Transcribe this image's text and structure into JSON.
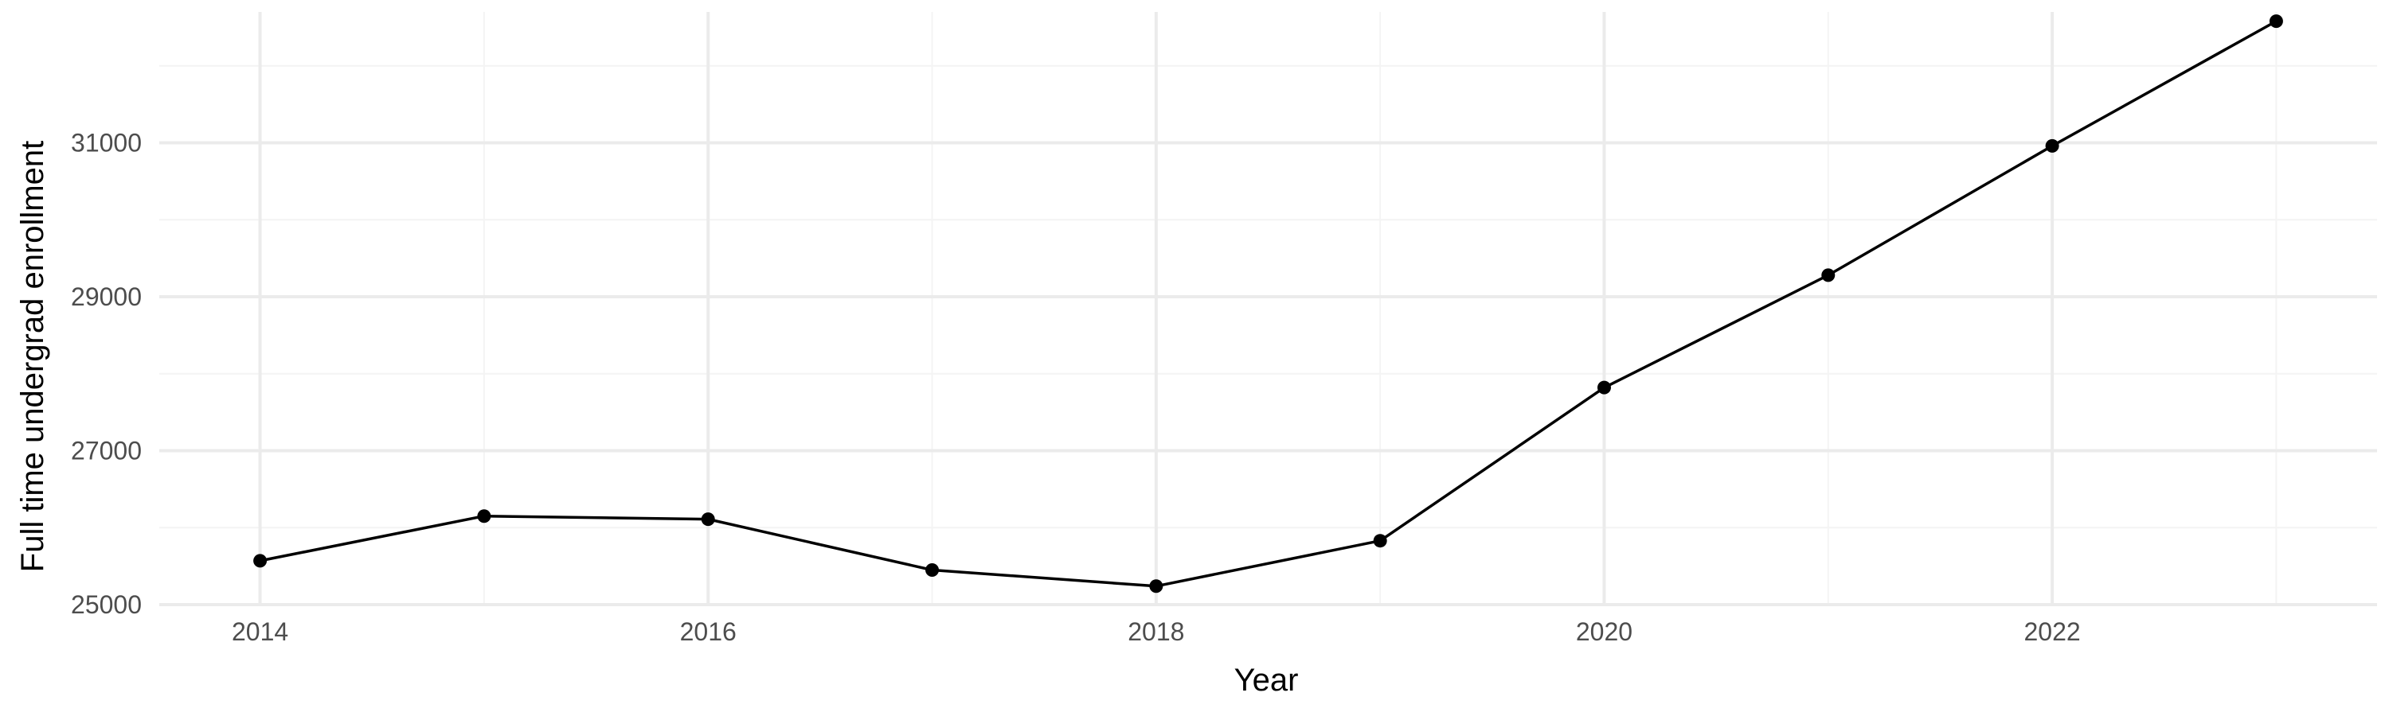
{
  "chart_data": {
    "type": "line",
    "title": "",
    "xlabel": "Year",
    "ylabel": "Full time undergrad enrollment",
    "x": [
      2014,
      2015,
      2016,
      2017,
      2018,
      2019,
      2020,
      2021,
      2022,
      2023
    ],
    "series": [
      {
        "values": [
          25570,
          26150,
          26110,
          25450,
          25240,
          25830,
          27820,
          29280,
          30960,
          32580
        ]
      }
    ],
    "xlim": [
      2013.55,
      2023.45
    ],
    "ylim": [
      25000,
      32700
    ],
    "x_ticks": [
      2014,
      2016,
      2018,
      2020,
      2022
    ],
    "x_tick_labels": [
      "2014",
      "2016",
      "2018",
      "2020",
      "2022"
    ],
    "y_ticks": [
      25000,
      27000,
      29000,
      31000
    ],
    "y_tick_labels": [
      "25000",
      "27000",
      "29000",
      "31000"
    ],
    "grid": true,
    "legend": "none",
    "colors": {
      "line": "#000000",
      "point": "#000000",
      "grid_major": "#ebebeb",
      "grid_minor": "#f4f4f4",
      "tick_text": "#4d4d4d"
    }
  }
}
